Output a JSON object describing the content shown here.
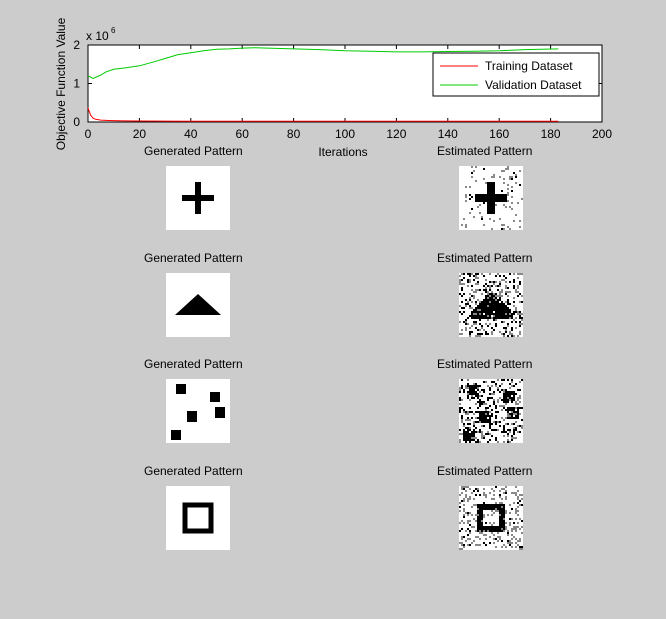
{
  "chart_data": {
    "type": "line",
    "xlabel": "Iterations",
    "ylabel": "Objective Function Value",
    "y_exponent_label": "x 10",
    "y_exponent": "6",
    "xlim": [
      0,
      200
    ],
    "ylim": [
      0,
      2
    ],
    "xticks": [
      0,
      20,
      40,
      60,
      80,
      100,
      120,
      140,
      160,
      180,
      200
    ],
    "yticks": [
      0,
      1,
      2
    ],
    "grid": false,
    "legend_position": "top-right",
    "series": [
      {
        "name": "Training Dataset",
        "color": "#ff0000",
        "x": [
          0,
          1,
          2,
          3,
          5,
          8,
          12,
          20,
          40,
          60,
          80,
          100,
          120,
          140,
          160,
          183
        ],
        "y": [
          0.37,
          0.18,
          0.1,
          0.07,
          0.05,
          0.04,
          0.03,
          0.025,
          0.02,
          0.02,
          0.02,
          0.02,
          0.02,
          0.02,
          0.02,
          0.02
        ]
      },
      {
        "name": "Validation Dataset",
        "color": "#00cc00",
        "x": [
          0,
          2,
          5,
          7,
          10,
          15,
          20,
          25,
          30,
          35,
          40,
          45,
          50,
          55,
          60,
          65,
          70,
          80,
          90,
          100,
          110,
          120,
          130,
          140,
          150,
          160,
          170,
          183
        ],
        "y": [
          1.2,
          1.13,
          1.22,
          1.3,
          1.37,
          1.41,
          1.46,
          1.55,
          1.65,
          1.75,
          1.8,
          1.85,
          1.89,
          1.9,
          1.92,
          1.93,
          1.92,
          1.9,
          1.88,
          1.85,
          1.84,
          1.82,
          1.82,
          1.83,
          1.84,
          1.85,
          1.88,
          1.9
        ]
      }
    ]
  },
  "patterns": [
    {
      "generated_title": "Generated Pattern",
      "estimated_title": "Estimated Pattern",
      "shape": "plus"
    },
    {
      "generated_title": "Generated Pattern",
      "estimated_title": "Estimated Pattern",
      "shape": "triangle"
    },
    {
      "generated_title": "Generated Pattern",
      "estimated_title": "Estimated Pattern",
      "shape": "scattered-squares"
    },
    {
      "generated_title": "Generated Pattern",
      "estimated_title": "Estimated Pattern",
      "shape": "square-outline"
    }
  ],
  "colors": {
    "figure_background": "#cccccc",
    "axes_background": "#ffffff",
    "pattern_ink": "#000000"
  }
}
